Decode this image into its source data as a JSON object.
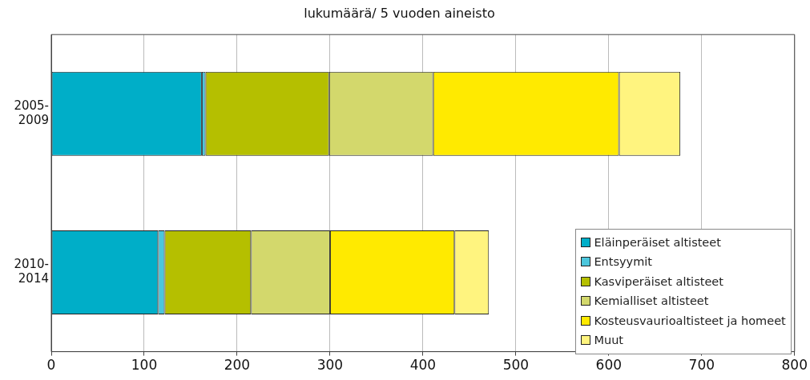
{
  "chart_data": {
    "type": "bar",
    "orientation": "horizontal",
    "stacked": true,
    "title": "lukumäärä/ 5 vuoden aineisto",
    "categories": [
      "2005-2009",
      "2010-2014"
    ],
    "series": [
      {
        "name": "Eläinperäiset altisteet",
        "color": "#00aec8",
        "values": [
          162,
          115
        ]
      },
      {
        "name": "Entsyymit",
        "color": "#4cc6dc",
        "values": [
          4,
          7
        ]
      },
      {
        "name": "Kasviperäiset altisteet",
        "color": "#b5bf00",
        "values": [
          133,
          93
        ]
      },
      {
        "name": "Kemialliset altisteet",
        "color": "#d3d86c",
        "values": [
          112,
          85
        ]
      },
      {
        "name": "Kosteusvaurioaltisteet ja homeet",
        "color": "#ffea00",
        "values": [
          200,
          134
        ]
      },
      {
        "name": "Muut",
        "color": "#fff47f",
        "values": [
          66,
          37
        ]
      }
    ],
    "xlim": [
      0,
      800
    ],
    "xticks": [
      0,
      100,
      200,
      300,
      400,
      500,
      600,
      700,
      800
    ],
    "grid": "x",
    "legend": "bottom right"
  }
}
